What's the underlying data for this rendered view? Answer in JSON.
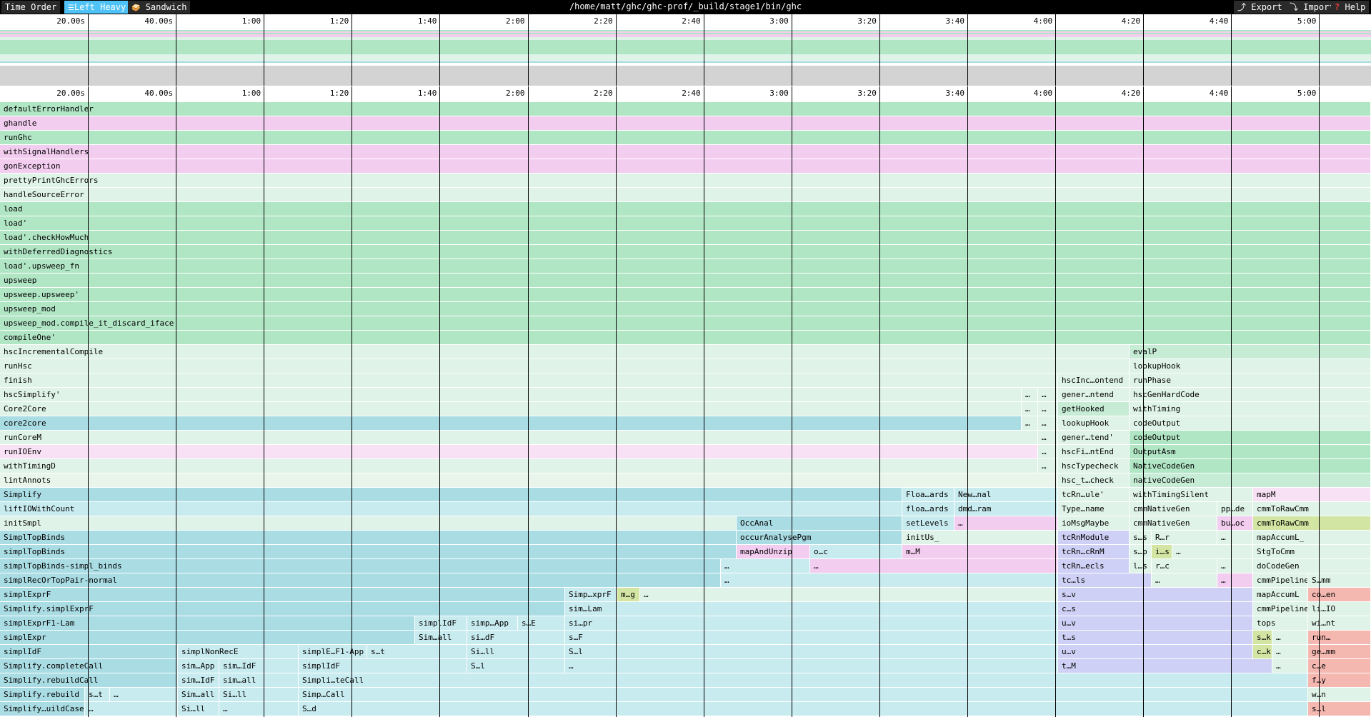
{
  "toolbar": {
    "time_order_label": "Time Order",
    "left_heavy_label": "Left Heavy",
    "left_heavy_icon": "☰",
    "sandwich_label": "Sandwich",
    "sandwich_icon": "🥪",
    "title": "/home/matt/ghc/ghc-prof/_build/stage1/bin/ghc",
    "export_label": "Export",
    "export_icon": "⤴",
    "import_label": "Import",
    "import_icon": "⤵",
    "help_label": "Help",
    "help_icon": "?"
  },
  "time_ticks": [
    "20.00s",
    "40.00s",
    "1:00",
    "1:20",
    "1:40",
    "2:00",
    "2:20",
    "2:40",
    "3:00",
    "3:20",
    "3:40",
    "4:00",
    "4:20",
    "4:40",
    "5:00"
  ],
  "colors": {
    "green": "#b1e6c5",
    "pink": "#f3cdf0",
    "light_green": "#dff3e8",
    "mint": "#c6ecd6",
    "blue": "#aadce4",
    "light_blue": "#c8ebef",
    "pale": "#e9f5ea",
    "olive": "#d3e5a2",
    "lavender": "#cfd0f5",
    "salmon": "#f5b8b0",
    "pale_pink": "#f8e1f4"
  },
  "flame_rows": [
    {
      "label": "defaultErrorHandler",
      "color": "green",
      "cells": []
    },
    {
      "label": "ghandle",
      "color": "pink",
      "cells": []
    },
    {
      "label": "runGhc",
      "color": "green",
      "cells": []
    },
    {
      "label": "withSignalHandlers",
      "color": "pink",
      "cells": []
    },
    {
      "label": "gonException",
      "color": "pink",
      "cells": []
    },
    {
      "label": "prettyPrintGhcErrors",
      "color": "light_green",
      "cells": []
    },
    {
      "label": "handleSourceError",
      "color": "light_green",
      "cells": []
    },
    {
      "label": "load",
      "color": "green",
      "cells": []
    },
    {
      "label": "load'",
      "color": "green",
      "cells": []
    },
    {
      "label": "load'.checkHowMuch",
      "color": "green",
      "cells": []
    },
    {
      "label": "withDeferredDiagnostics",
      "color": "green",
      "cells": []
    },
    {
      "label": "load'.upsweep_fn",
      "color": "green",
      "cells": []
    },
    {
      "label": "upsweep",
      "color": "green",
      "cells": []
    },
    {
      "label": "upsweep.upsweep'",
      "color": "green",
      "cells": []
    },
    {
      "label": "upsweep_mod",
      "color": "green",
      "cells": []
    },
    {
      "label": "upsweep_mod.compile_it_discard_iface",
      "color": "green",
      "cells": []
    },
    {
      "label": "compileOne'",
      "color": "green",
      "cells": []
    },
    {
      "label": "hscIncrementalCompile",
      "color": "light_green",
      "cells": [
        {
          "t": "evalP",
          "c": "mint",
          "s": 0.824
        }
      ]
    },
    {
      "label": "runHsc",
      "color": "light_green",
      "cells": [
        {
          "t": "lookupHook",
          "c": "light_green",
          "s": 0.824
        }
      ]
    },
    {
      "label": "finish",
      "color": "light_green",
      "cells": [
        {
          "t": "hscInc…ontend",
          "c": "light_green",
          "s": 0.772
        },
        {
          "t": "runPhase",
          "c": "light_green",
          "s": 0.824
        }
      ]
    },
    {
      "label": "hscSimplify'",
      "color": "light_green",
      "cells": [
        {
          "t": "…",
          "c": "light_green",
          "s": 0.745
        },
        {
          "t": "…",
          "c": "light_green",
          "s": 0.757
        },
        {
          "t": "gener…ntend",
          "c": "light_green",
          "s": 0.772
        },
        {
          "t": "hscGenHardCode",
          "c": "light_green",
          "s": 0.824
        }
      ]
    },
    {
      "label": "Core2Core",
      "color": "light_green",
      "cells": [
        {
          "t": "…",
          "c": "light_green",
          "s": 0.745
        },
        {
          "t": "…",
          "c": "light_green",
          "s": 0.757
        },
        {
          "t": "getHooked",
          "c": "mint",
          "s": 0.772
        },
        {
          "t": "withTiming",
          "c": "light_green",
          "s": 0.824
        }
      ]
    },
    {
      "label": "core2core",
      "color": "blue",
      "cells": [
        {
          "t": "…",
          "c": "light_green",
          "s": 0.745
        },
        {
          "t": "…",
          "c": "light_green",
          "s": 0.757
        },
        {
          "t": "lookupHook",
          "c": "light_green",
          "s": 0.772
        },
        {
          "t": "codeOutput",
          "c": "light_green",
          "s": 0.824
        }
      ]
    },
    {
      "label": "runCoreM",
      "color": "light_green",
      "cells": [
        {
          "t": "…",
          "c": "light_green",
          "s": 0.757
        },
        {
          "t": "gener…tend'",
          "c": "light_green",
          "s": 0.772
        },
        {
          "t": "codeOutput",
          "c": "green",
          "s": 0.824
        }
      ]
    },
    {
      "label": "runIOEnv",
      "color": "pale_pink",
      "cells": [
        {
          "t": "…",
          "c": "light_green",
          "s": 0.757
        },
        {
          "t": "hscFi…ntEnd",
          "c": "light_green",
          "s": 0.772
        },
        {
          "t": "OutputAsm",
          "c": "green",
          "s": 0.824
        }
      ]
    },
    {
      "label": "withTimingD",
      "color": "light_green",
      "cells": [
        {
          "t": "…",
          "c": "light_green",
          "s": 0.757
        },
        {
          "t": "hscTypecheck",
          "c": "light_green",
          "s": 0.772
        },
        {
          "t": "NativeCodeGen",
          "c": "green",
          "s": 0.824
        }
      ]
    },
    {
      "label": "lintAnnots",
      "color": "pale",
      "cells": [
        {
          "t": "hsc_t…check",
          "c": "light_green",
          "s": 0.772
        },
        {
          "t": "nativeCodeGen",
          "c": "mint",
          "s": 0.824
        }
      ]
    },
    {
      "label": "Simplify",
      "color": "blue",
      "cells": [
        {
          "t": "Floa…ards",
          "c": "light_blue",
          "s": 0.658
        },
        {
          "t": "New…nal",
          "c": "light_blue",
          "s": 0.696
        },
        {
          "t": "tcRn…ule'",
          "c": "light_green",
          "s": 0.772
        },
        {
          "t": "withTimingSilent",
          "c": "light_green",
          "s": 0.824
        },
        {
          "t": "mapM",
          "c": "pale_pink",
          "s": 0.914
        }
      ]
    },
    {
      "label": "liftIOWithCount",
      "color": "light_blue",
      "cells": [
        {
          "t": "floa…ards",
          "c": "light_blue",
          "s": 0.658
        },
        {
          "t": "dmd…ram",
          "c": "light_blue",
          "s": 0.696
        },
        {
          "t": "Type…name",
          "c": "light_green",
          "s": 0.772
        },
        {
          "t": "cmmNativeGen",
          "c": "light_green",
          "s": 0.824
        },
        {
          "t": "pp…de",
          "c": "light_green",
          "s": 0.888
        },
        {
          "t": "cmmToRawCmm",
          "c": "light_green",
          "s": 0.914
        }
      ]
    },
    {
      "label": "initSmpl",
      "color": "light_green",
      "cells": [
        {
          "t": "OccAnal",
          "c": "blue",
          "s": 0.537
        },
        {
          "t": "setLevels",
          "c": "light_blue",
          "s": 0.658
        },
        {
          "t": "…",
          "c": "pink",
          "s": 0.696
        },
        {
          "t": "ioMsgMaybe",
          "c": "light_green",
          "s": 0.772
        },
        {
          "t": "cmmNativeGen",
          "c": "light_green",
          "s": 0.824
        },
        {
          "t": "bu…oc",
          "c": "pink",
          "s": 0.888
        },
        {
          "t": "cmmToRawCmm",
          "c": "olive",
          "s": 0.914
        }
      ]
    },
    {
      "label": "SimplTopBinds",
      "color": "blue",
      "cells": [
        {
          "t": "occurAnalysePgm",
          "c": "blue",
          "s": 0.537
        },
        {
          "t": "initUs_",
          "c": "light_green",
          "s": 0.658
        },
        {
          "t": "tcRnModule",
          "c": "lavender",
          "s": 0.772
        },
        {
          "t": "s…s",
          "c": "light_green",
          "s": 0.824
        },
        {
          "t": "R…r",
          "c": "light_green",
          "s": 0.84
        },
        {
          "t": "…",
          "c": "light_green",
          "s": 0.888
        },
        {
          "t": "mapAccumL_",
          "c": "light_green",
          "s": 0.914
        }
      ]
    },
    {
      "label": "simplTopBinds",
      "color": "blue",
      "cells": [
        {
          "t": "mapAndUnzip",
          "c": "pink",
          "s": 0.537
        },
        {
          "t": "o…c",
          "c": "light_blue",
          "s": 0.591
        },
        {
          "t": "m…M",
          "c": "pink",
          "s": 0.658
        },
        {
          "t": "tcRn…cRnM",
          "c": "lavender",
          "s": 0.772
        },
        {
          "t": "s…p",
          "c": "light_green",
          "s": 0.824
        },
        {
          "t": "i…s",
          "c": "olive",
          "s": 0.84
        },
        {
          "t": "…",
          "c": "light_green",
          "s": 0.855
        },
        {
          "t": "StgToCmm",
          "c": "light_green",
          "s": 0.914
        }
      ]
    },
    {
      "label": "simplTopBinds-simpl_binds",
      "color": "blue",
      "cells": [
        {
          "t": "…",
          "c": "light_blue",
          "s": 0.526
        },
        {
          "t": "…",
          "c": "pink",
          "s": 0.591
        },
        {
          "t": "tcRn…ecls",
          "c": "lavender",
          "s": 0.772
        },
        {
          "t": "l…s",
          "c": "light_green",
          "s": 0.824
        },
        {
          "t": "r…c",
          "c": "light_green",
          "s": 0.84
        },
        {
          "t": "…",
          "c": "light_green",
          "s": 0.888
        },
        {
          "t": "doCodeGen",
          "c": "light_green",
          "s": 0.914
        }
      ]
    },
    {
      "label": "simplRecOrTopPair-normal",
      "color": "blue",
      "cells": [
        {
          "t": "…",
          "c": "light_blue",
          "s": 0.526
        },
        {
          "t": "tc…ls",
          "c": "lavender",
          "s": 0.772
        },
        {
          "t": "…",
          "c": "light_green",
          "s": 0.84
        },
        {
          "t": "…",
          "c": "pink",
          "s": 0.888
        },
        {
          "t": "cmmPipeline",
          "c": "light_green",
          "s": 0.914
        },
        {
          "t": "S…mm",
          "c": "light_green",
          "s": 0.954
        }
      ]
    },
    {
      "label": "simplExprF",
      "color": "blue",
      "cells": [
        {
          "t": "Simp…xprF",
          "c": "light_blue",
          "s": 0.412
        },
        {
          "t": "m…g",
          "c": "olive",
          "s": 0.45
        },
        {
          "t": "…",
          "c": "light_green",
          "s": 0.467
        },
        {
          "t": "s…v",
          "c": "lavender",
          "s": 0.772
        },
        {
          "t": "mapAccumL",
          "c": "light_green",
          "s": 0.914
        },
        {
          "t": "co…en",
          "c": "salmon",
          "s": 0.954
        }
      ]
    },
    {
      "label": "Simplify.simplExprF",
      "color": "blue",
      "cells": [
        {
          "t": "sim…Lam",
          "c": "light_blue",
          "s": 0.412
        },
        {
          "t": "c…s",
          "c": "lavender",
          "s": 0.772
        },
        {
          "t": "cmmPipeline",
          "c": "light_green",
          "s": 0.914
        },
        {
          "t": "li…IO",
          "c": "light_green",
          "s": 0.954
        }
      ]
    },
    {
      "label": "simplExprF1-Lam",
      "color": "blue",
      "cells": [
        {
          "t": "simplIdF",
          "c": "light_blue",
          "s": 0.303
        },
        {
          "t": "simp…App",
          "c": "light_blue",
          "s": 0.341
        },
        {
          "t": "s…E",
          "c": "light_blue",
          "s": 0.378
        },
        {
          "t": "si…pr",
          "c": "light_blue",
          "s": 0.412
        },
        {
          "t": "u…v",
          "c": "lavender",
          "s": 0.772
        },
        {
          "t": "tops",
          "c": "light_green",
          "s": 0.914
        },
        {
          "t": "wi…nt",
          "c": "light_green",
          "s": 0.954
        }
      ]
    },
    {
      "label": "simplExpr",
      "color": "blue",
      "cells": [
        {
          "t": "Sim…all",
          "c": "light_blue",
          "s": 0.303
        },
        {
          "t": "si…dF",
          "c": "light_blue",
          "s": 0.341
        },
        {
          "t": "s…F",
          "c": "light_blue",
          "s": 0.412
        },
        {
          "t": "t…s",
          "c": "lavender",
          "s": 0.772
        },
        {
          "t": "s…k",
          "c": "olive",
          "s": 0.914
        },
        {
          "t": "…",
          "c": "light_green",
          "s": 0.928
        },
        {
          "t": "run…",
          "c": "salmon",
          "s": 0.954
        }
      ]
    },
    {
      "label": "simplIdF",
      "color": "blue",
      "cells": [
        {
          "t": "simplNonRecE",
          "c": "light_blue",
          "s": 0.13
        },
        {
          "t": "simplE…F1-App",
          "c": "light_blue",
          "s": 0.218
        },
        {
          "t": "s…t",
          "c": "light_blue",
          "s": 0.268
        },
        {
          "t": "Si…ll",
          "c": "light_blue",
          "s": 0.341
        },
        {
          "t": "S…l",
          "c": "light_blue",
          "s": 0.412
        },
        {
          "t": "u…v",
          "c": "lavender",
          "s": 0.772
        },
        {
          "t": "c…k",
          "c": "olive",
          "s": 0.914
        },
        {
          "t": "…",
          "c": "light_green",
          "s": 0.928
        },
        {
          "t": "ge…mm",
          "c": "salmon",
          "s": 0.954
        }
      ]
    },
    {
      "label": "Simplify.completeCall",
      "color": "blue",
      "cells": [
        {
          "t": "sim…App",
          "c": "light_blue",
          "s": 0.13
        },
        {
          "t": "sim…IdF",
          "c": "light_blue",
          "s": 0.16
        },
        {
          "t": "simplIdF",
          "c": "light_blue",
          "s": 0.218
        },
        {
          "t": "S…l",
          "c": "light_blue",
          "s": 0.341
        },
        {
          "t": "…",
          "c": "light_blue",
          "s": 0.412
        },
        {
          "t": "t…M",
          "c": "lavender",
          "s": 0.772
        },
        {
          "t": "…",
          "c": "light_green",
          "s": 0.928
        },
        {
          "t": "c…e",
          "c": "salmon",
          "s": 0.954
        }
      ]
    },
    {
      "label": "Simplify.rebuildCall",
      "color": "blue",
      "cells": [
        {
          "t": "sim…IdF",
          "c": "light_blue",
          "s": 0.13
        },
        {
          "t": "sim…all",
          "c": "light_blue",
          "s": 0.16
        },
        {
          "t": "Simpli…teCall",
          "c": "light_blue",
          "s": 0.218
        },
        {
          "t": "f…y",
          "c": "salmon",
          "s": 0.954
        }
      ]
    },
    {
      "label": "Simplify.rebuild",
      "color": "blue",
      "cells": [
        {
          "t": "s…t",
          "c": "light_blue",
          "s": 0.062
        },
        {
          "t": "…",
          "c": "light_blue",
          "s": 0.08
        },
        {
          "t": "Sim…all",
          "c": "light_blue",
          "s": 0.13
        },
        {
          "t": "Si…ll",
          "c": "light_blue",
          "s": 0.16
        },
        {
          "t": "Simp…Call",
          "c": "light_blue",
          "s": 0.218
        },
        {
          "t": "w…n",
          "c": "light_green",
          "s": 0.954
        }
      ]
    },
    {
      "label": "Simplify…uildCase",
      "color": "blue",
      "cells": [
        {
          "t": "…",
          "c": "light_blue",
          "s": 0.062
        },
        {
          "t": "Si…ll",
          "c": "light_blue",
          "s": 0.13
        },
        {
          "t": "…",
          "c": "light_blue",
          "s": 0.16
        },
        {
          "t": "S…d",
          "c": "light_blue",
          "s": 0.218
        },
        {
          "t": "s…l",
          "c": "salmon",
          "s": 0.954
        }
      ]
    }
  ]
}
